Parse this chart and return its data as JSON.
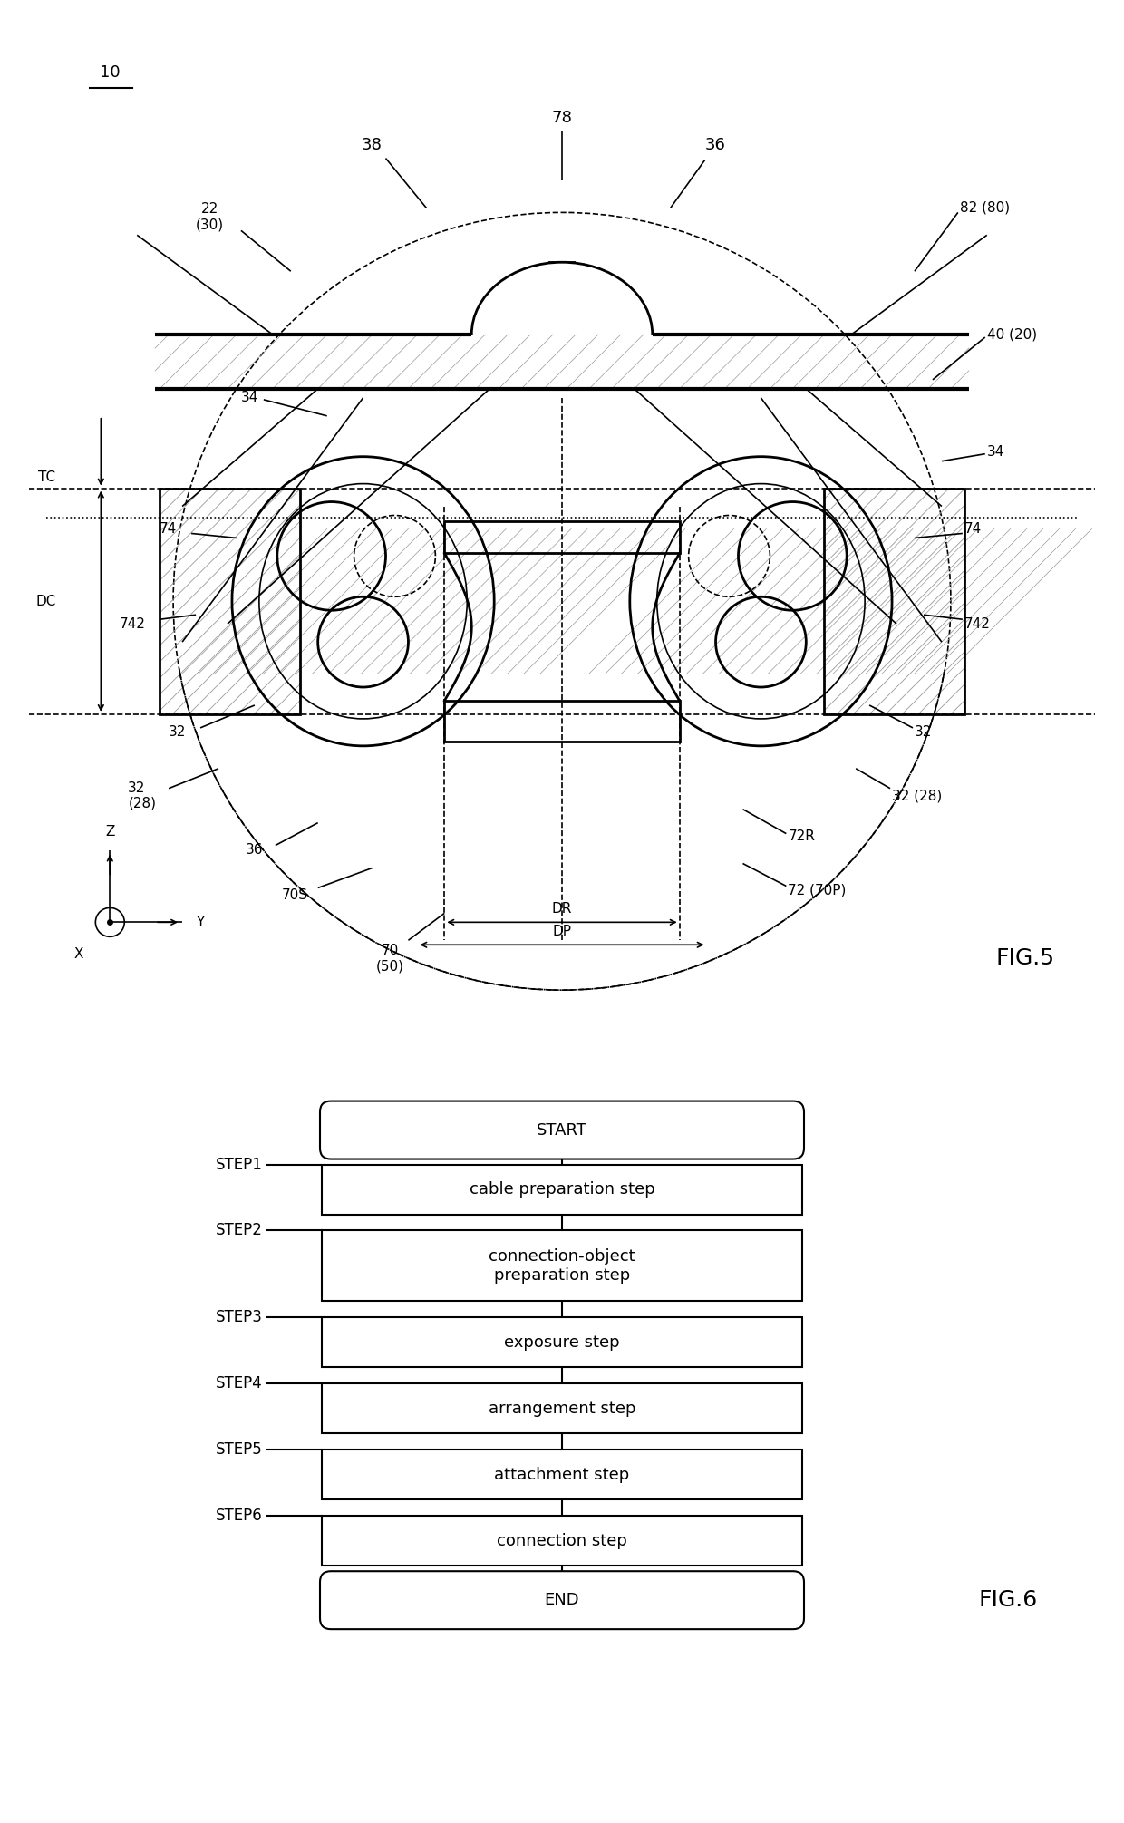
{
  "bg_color": "#ffffff",
  "fig5_label": "FIG.5",
  "fig6_label": "FIG.6",
  "flowchart": {
    "start_label": "START",
    "end_label": "END",
    "steps": [
      {
        "id": "STEP1",
        "text": "cable preparation step"
      },
      {
        "id": "STEP2",
        "text": "connection-object\npreparation step"
      },
      {
        "id": "STEP3",
        "text": "exposure step"
      },
      {
        "id": "STEP4",
        "text": "arrangement step"
      },
      {
        "id": "STEP5",
        "text": "attachment step"
      },
      {
        "id": "STEP6",
        "text": "connection step"
      }
    ]
  }
}
